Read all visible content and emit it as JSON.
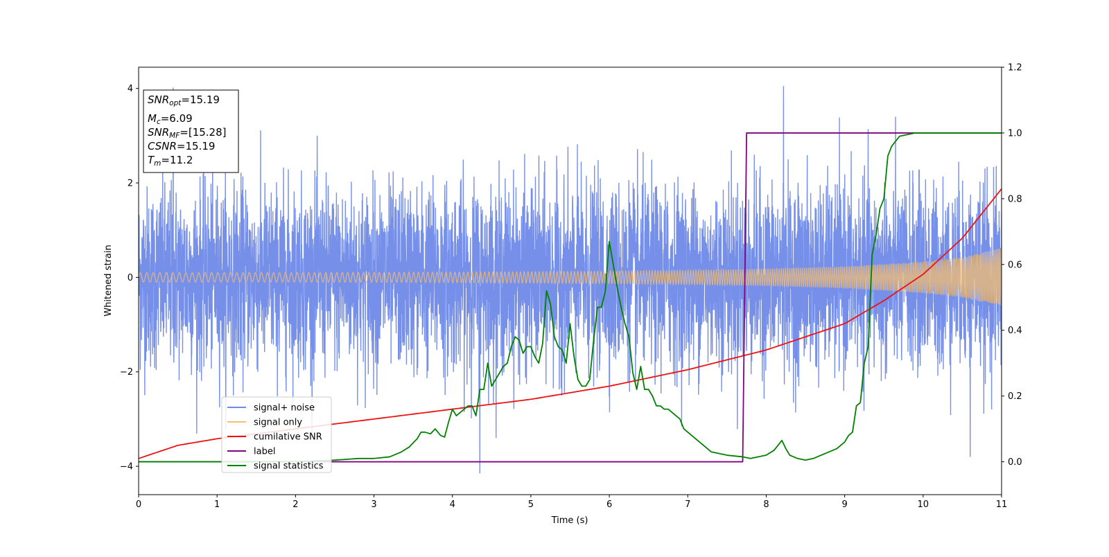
{
  "chart_data": {
    "type": "line",
    "xlabel": "Time (s)",
    "ylabel": "Whitened strain",
    "xlim": [
      0,
      11
    ],
    "ylim": [
      -4.6,
      4.45
    ],
    "y2lim": [
      -0.1,
      1.2
    ],
    "grid": false,
    "legend_position": "lower-left",
    "x_ticks": [
      0,
      1,
      2,
      3,
      4,
      5,
      6,
      7,
      8,
      9,
      10,
      11
    ],
    "y_ticks": [
      -4,
      -2,
      0,
      2,
      4
    ],
    "y2_ticks": [
      "0.0",
      "0.2",
      "0.4",
      "0.6",
      "0.8",
      "1.0",
      "1.2"
    ],
    "info_box": [
      {
        "sym": "SNR",
        "sub": "opt",
        "val": "=15.19"
      },
      {
        "sym": "M",
        "sub": "c",
        "val": "=6.09"
      },
      {
        "sym": "SNR",
        "sub": "MF",
        "val": "=[15.28]"
      },
      {
        "sym": "CSNR",
        "sub": "",
        "val": "=15.19"
      },
      {
        "sym": "T",
        "sub": "m",
        "val": "=11.2"
      }
    ],
    "series": [
      {
        "name": "signal+ noise",
        "axis": "left",
        "color": "#6f8ae8",
        "description_kind": "noise",
        "noise_band": {
          "typical_max": 2.0,
          "peak_max": 4.05,
          "peak_min": -4.15
        },
        "notable_peaks": [
          [
            0.44,
            4.02
          ],
          [
            8.22,
            4.05
          ],
          [
            4.35,
            -4.15
          ],
          [
            10.6,
            -3.8
          ]
        ]
      },
      {
        "name": "signal only",
        "axis": "left",
        "color": "#f5be70",
        "envelope": {
          "t": [
            0,
            2,
            4,
            6,
            7,
            8,
            9,
            10,
            10.5,
            11
          ],
          "amp": [
            0.1,
            0.1,
            0.11,
            0.13,
            0.15,
            0.18,
            0.23,
            0.33,
            0.43,
            0.62
          ]
        }
      },
      {
        "name": "cumilative SNR",
        "axis": "right",
        "color": "#ee1111",
        "x": [
          0,
          0.5,
          1,
          2,
          3,
          4,
          5,
          6,
          7,
          7.5,
          8,
          8.5,
          9,
          9.5,
          10,
          10.5,
          11
        ],
        "y": [
          0.01,
          0.05,
          0.07,
          0.1,
          0.13,
          0.16,
          0.19,
          0.23,
          0.28,
          0.31,
          0.34,
          0.38,
          0.42,
          0.49,
          0.57,
          0.68,
          0.83
        ]
      },
      {
        "name": "label",
        "axis": "right",
        "color": "#800080",
        "x": [
          0,
          7.7,
          7.75,
          11
        ],
        "y": [
          0.0,
          0.0,
          1.0,
          1.0
        ]
      },
      {
        "name": "signal statistics",
        "axis": "right",
        "color": "#008000",
        "x": [
          0,
          0.5,
          1,
          2,
          2.5,
          2.8,
          3.0,
          3.2,
          3.35,
          3.45,
          3.55,
          3.6,
          3.65,
          3.72,
          3.78,
          3.85,
          3.9,
          3.95,
          4.0,
          4.05,
          4.1,
          4.2,
          4.25,
          4.3,
          4.35,
          4.4,
          4.45,
          4.5,
          4.55,
          4.6,
          4.65,
          4.7,
          4.75,
          4.8,
          4.85,
          4.9,
          4.95,
          5.0,
          5.05,
          5.1,
          5.15,
          5.2,
          5.25,
          5.3,
          5.35,
          5.4,
          5.45,
          5.5,
          5.55,
          5.6,
          5.65,
          5.7,
          5.75,
          5.8,
          5.85,
          5.9,
          5.95,
          6.0,
          6.05,
          6.1,
          6.15,
          6.2,
          6.25,
          6.3,
          6.35,
          6.4,
          6.45,
          6.5,
          6.55,
          6.6,
          6.65,
          6.7,
          6.75,
          6.8,
          6.85,
          6.9,
          6.95,
          7.0,
          7.05,
          7.1,
          7.2,
          7.3,
          7.5,
          7.7,
          7.8,
          7.9,
          8.0,
          8.1,
          8.15,
          8.2,
          8.25,
          8.3,
          8.35,
          8.4,
          8.5,
          8.6,
          8.7,
          8.8,
          8.9,
          9.0,
          9.05,
          9.1,
          9.15,
          9.2,
          9.25,
          9.3,
          9.35,
          9.4,
          9.45,
          9.5,
          9.55,
          9.6,
          9.7,
          9.8,
          9.9,
          10.0,
          10.5,
          11
        ],
        "y": [
          0.0,
          0.0,
          0.0,
          0.0,
          0.005,
          0.01,
          0.01,
          0.015,
          0.03,
          0.045,
          0.07,
          0.09,
          0.09,
          0.085,
          0.1,
          0.08,
          0.075,
          0.12,
          0.16,
          0.14,
          0.15,
          0.17,
          0.17,
          0.14,
          0.22,
          0.22,
          0.3,
          0.23,
          0.25,
          0.27,
          0.29,
          0.3,
          0.35,
          0.38,
          0.37,
          0.33,
          0.35,
          0.35,
          0.32,
          0.3,
          0.36,
          0.52,
          0.48,
          0.38,
          0.35,
          0.34,
          0.3,
          0.42,
          0.32,
          0.25,
          0.23,
          0.23,
          0.25,
          0.37,
          0.47,
          0.47,
          0.52,
          0.67,
          0.6,
          0.53,
          0.47,
          0.42,
          0.38,
          0.27,
          0.22,
          0.29,
          0.22,
          0.22,
          0.2,
          0.17,
          0.17,
          0.16,
          0.16,
          0.15,
          0.14,
          0.13,
          0.1,
          0.09,
          0.08,
          0.07,
          0.05,
          0.03,
          0.02,
          0.015,
          0.01,
          0.015,
          0.02,
          0.035,
          0.05,
          0.065,
          0.04,
          0.02,
          0.015,
          0.01,
          0.005,
          0.01,
          0.02,
          0.03,
          0.04,
          0.06,
          0.08,
          0.09,
          0.17,
          0.18,
          0.3,
          0.35,
          0.63,
          0.69,
          0.77,
          0.8,
          0.93,
          0.96,
          0.99,
          0.995,
          1.0,
          1.0,
          1.0,
          1.0
        ]
      }
    ]
  }
}
